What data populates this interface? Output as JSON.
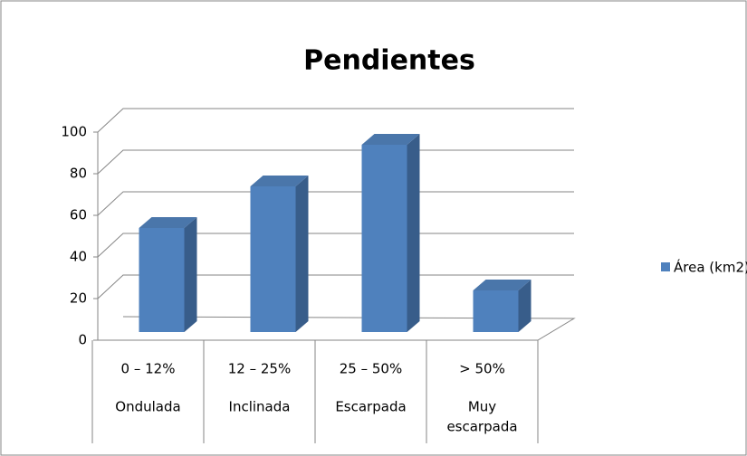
{
  "chart_data": {
    "type": "bar3d",
    "title": "Pendientes",
    "categories": [
      [
        "0 – 12%",
        "Ondulada"
      ],
      [
        "12 – 25%",
        "Inclinada"
      ],
      [
        "25 – 50%",
        "Escarpada"
      ],
      [
        "> 50%",
        "Muy",
        "escarpada"
      ]
    ],
    "series": [
      {
        "name": "Área (km2)",
        "color": "#4f81bd",
        "values": [
          50,
          70,
          90,
          20
        ]
      }
    ],
    "ylim": [
      0,
      100
    ],
    "yticks": [
      0,
      20,
      40,
      60,
      80,
      100
    ],
    "grid": true,
    "legend": "right"
  }
}
